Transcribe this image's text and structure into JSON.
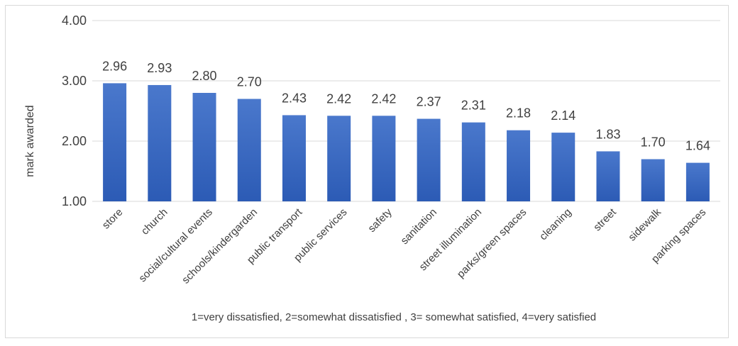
{
  "chart_data": {
    "type": "bar",
    "categories": [
      "store",
      "church",
      "social/cultural events",
      "schools/kindergarden",
      "public transport",
      "public services",
      "safety",
      "sanitation",
      "street illumination",
      "parks/green spaces",
      "cleaning",
      "street",
      "sidewalk",
      "parking spaces"
    ],
    "values": [
      2.96,
      2.93,
      2.8,
      2.7,
      2.43,
      2.42,
      2.42,
      2.37,
      2.31,
      2.18,
      2.14,
      1.83,
      1.7,
      1.64
    ],
    "data_labels": [
      "2.96",
      "2.93",
      "2.80",
      "2.70",
      "2.43",
      "2.42",
      "2.42",
      "2.37",
      "2.31",
      "2.18",
      "2.14",
      "1.83",
      "1.70",
      "1.64"
    ],
    "ylabel": "mark awarded",
    "ylim": [
      1.0,
      4.0
    ],
    "yticks": [
      "1.00",
      "2.00",
      "3.00",
      "4.00"
    ],
    "grid": true,
    "note": "1=very dissatisfied, 2=somewhat dissatisfied , 3= somewhat satisfied, 4=very satisfied",
    "colors": {
      "bar_top": "#4a78cc",
      "bar_bottom": "#2c5bb5",
      "grid": "#d9d9d9",
      "text": "#404040"
    }
  }
}
